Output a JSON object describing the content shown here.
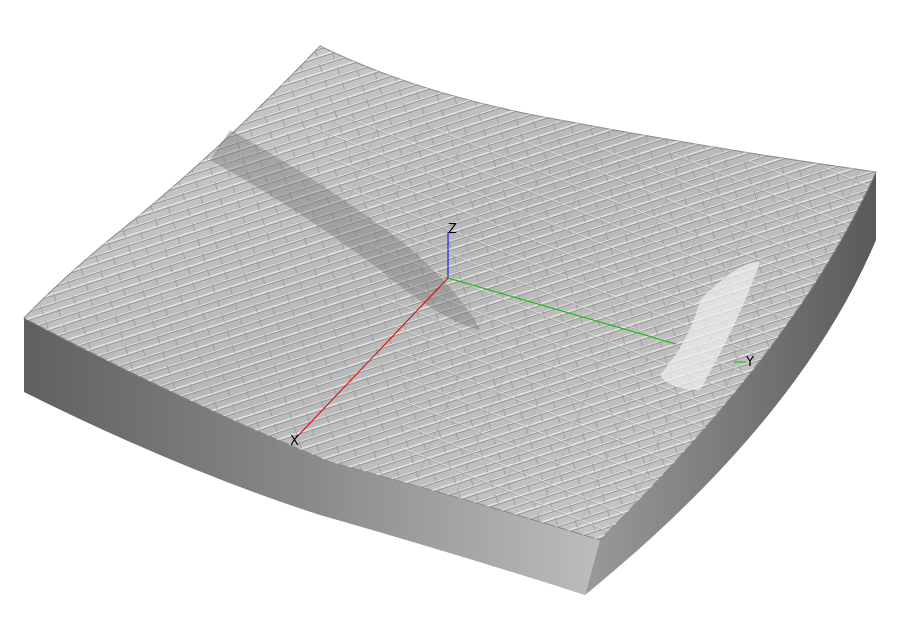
{
  "axes": {
    "x": {
      "label": "X",
      "color": "#e00000"
    },
    "y": {
      "label": "Y",
      "color": "#00c000"
    },
    "z": {
      "label": "Z",
      "color": "#0000ff"
    }
  },
  "model": {
    "surface_color": "#bdbdbd",
    "side_color": "#8c8c8c",
    "background": "#ffffff"
  }
}
